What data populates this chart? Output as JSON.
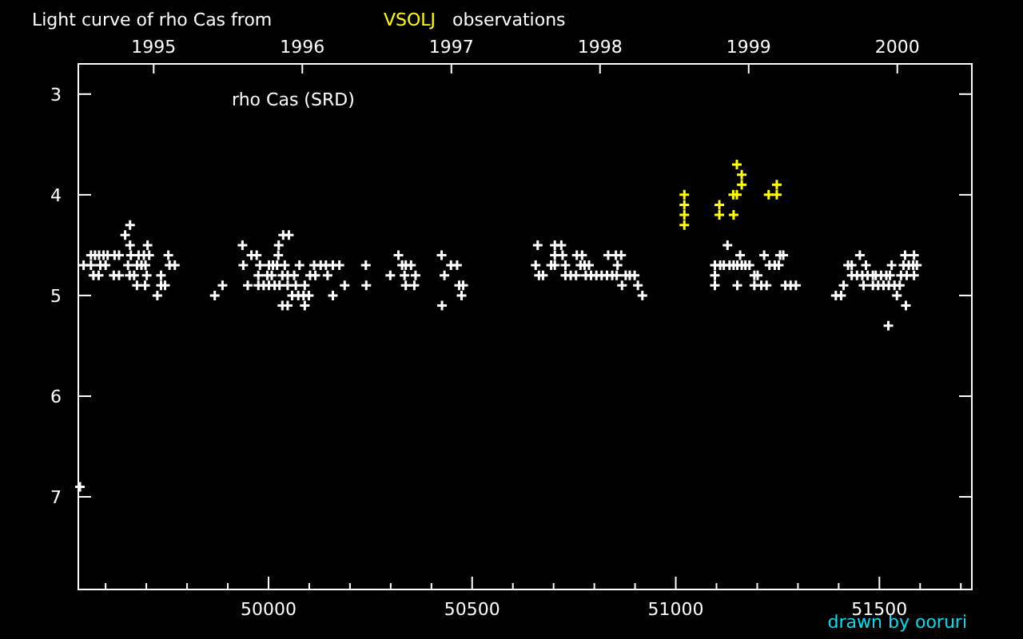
{
  "chart_data": {
    "type": "scatter",
    "title": "Light curve of rho Cas from",
    "annotations": [
      "observations",
      "rho Cas (SRD)",
      "drawn by ooruri"
    ],
    "legend": "top",
    "marker": "cross",
    "xlim": [
      49533,
      51727
    ],
    "ylim": [
      7.92,
      2.7
    ],
    "xticks": [
      {
        "value": 49600,
        "label": null
      },
      {
        "value": 49700,
        "label": null
      },
      {
        "value": 49800,
        "label": null
      },
      {
        "value": 49900,
        "label": null
      },
      50000,
      {
        "value": 50100,
        "label": null
      },
      {
        "value": 50200,
        "label": null
      },
      {
        "value": 50300,
        "label": null
      },
      {
        "value": 50400,
        "label": null
      },
      50500,
      {
        "value": 50600,
        "label": null
      },
      {
        "value": 50700,
        "label": null
      },
      {
        "value": 50800,
        "label": null
      },
      {
        "value": 50900,
        "label": null
      },
      51000,
      {
        "value": 51100,
        "label": null
      },
      {
        "value": 51200,
        "label": null
      },
      {
        "value": 51300,
        "label": null
      },
      {
        "value": 51400,
        "label": null
      },
      51500,
      {
        "value": 51600,
        "label": null
      },
      {
        "value": 51700,
        "label": null
      }
    ],
    "x2lim": [
      "1994-06-30",
      "2000-07-02"
    ],
    "x2ticks": [
      "1995",
      "1996",
      "1997",
      "1998",
      "1999",
      "2000"
    ],
    "yticks": [
      3,
      4,
      5,
      6,
      7
    ],
    "series": [
      {
        "color": "#ffffff",
        "x": [
          49660,
          49648,
          49660,
          49703,
          49564,
          49574,
          49584,
          49595,
          49605,
          49622,
          49633,
          49662,
          49681,
          49694,
          49707,
          49754,
          49546,
          49564,
          49587,
          49600,
          49655,
          49677,
          49688,
          49698,
          49757,
          49770,
          49570,
          49583,
          49620,
          49633,
          49659,
          49670,
          49701,
          49736,
          49677,
          49697,
          49736,
          49746,
          49727,
          49537,
          50036,
          50050,
          49936,
          50025,
          49958,
          49971,
          50024,
          49938,
          49979,
          50001,
          50011,
          50021,
          50040,
          50076,
          50112,
          50128,
          50141,
          50158,
          50174,
          50239,
          49975,
          49997,
          50008,
          50034,
          50047,
          50063,
          50102,
          50115,
          50145,
          49887,
          49949,
          49975,
          49988,
          50001,
          50015,
          50027,
          50047,
          50067,
          50089,
          50187,
          50240,
          49868,
          50058,
          50073,
          50086,
          50099,
          50158,
          50034,
          50047,
          50089,
          50319,
          50425,
          50328,
          50337,
          50350,
          50448,
          50463,
          50299,
          50334,
          50361,
          50432,
          50337,
          50358,
          50468,
          50478,
          50474,
          50426,
          50661,
          50703,
          50719,
          50703,
          50722,
          50757,
          50770,
          50834,
          50853,
          50866,
          50656,
          50694,
          50703,
          50729,
          50766,
          50776,
          50787,
          50857,
          50664,
          50674,
          50729,
          50742,
          50755,
          50779,
          50792,
          50805,
          50818,
          50831,
          50844,
          50855,
          50877,
          50887,
          50899,
          50868,
          50907,
          50918,
          51127,
          51158,
          51217,
          51256,
          51264,
          51096,
          51109,
          51118,
          51132,
          51142,
          51151,
          51162,
          51171,
          51181,
          51230,
          51243,
          51253,
          51096,
          51193,
          51201,
          51096,
          51151,
          51193,
          51210,
          51223,
          51269,
          51282,
          51295,
          51452,
          51563,
          51585,
          51423,
          51432,
          51467,
          51530,
          51559,
          51572,
          51583,
          51592,
          51432,
          51445,
          51458,
          51471,
          51484,
          51491,
          51504,
          51517,
          51526,
          51553,
          51567,
          51585,
          51412,
          51461,
          51484,
          51497,
          51510,
          51523,
          51537,
          51550,
          51393,
          51406,
          51543,
          51565,
          51522
        ],
        "values": [
          4.3,
          4.4,
          4.5,
          4.5,
          4.6,
          4.6,
          4.6,
          4.6,
          4.6,
          4.6,
          4.6,
          4.6,
          4.6,
          4.6,
          4.6,
          4.6,
          4.7,
          4.7,
          4.7,
          4.7,
          4.7,
          4.7,
          4.7,
          4.7,
          4.7,
          4.7,
          4.8,
          4.8,
          4.8,
          4.8,
          4.8,
          4.8,
          4.8,
          4.8,
          4.9,
          4.9,
          4.9,
          4.9,
          5.0,
          6.9,
          4.4,
          4.4,
          4.5,
          4.5,
          4.6,
          4.6,
          4.6,
          4.7,
          4.7,
          4.7,
          4.7,
          4.7,
          4.7,
          4.7,
          4.7,
          4.7,
          4.7,
          4.7,
          4.7,
          4.7,
          4.8,
          4.8,
          4.8,
          4.8,
          4.8,
          4.8,
          4.8,
          4.8,
          4.8,
          4.9,
          4.9,
          4.9,
          4.9,
          4.9,
          4.9,
          4.9,
          4.9,
          4.9,
          4.9,
          4.9,
          4.9,
          5.0,
          5.0,
          5.0,
          5.0,
          5.0,
          5.0,
          5.1,
          5.1,
          5.1,
          4.6,
          4.6,
          4.7,
          4.7,
          4.7,
          4.7,
          4.7,
          4.8,
          4.8,
          4.8,
          4.8,
          4.9,
          4.9,
          4.9,
          4.9,
          5.0,
          5.1,
          4.5,
          4.5,
          4.5,
          4.6,
          4.6,
          4.6,
          4.6,
          4.6,
          4.6,
          4.6,
          4.7,
          4.7,
          4.7,
          4.7,
          4.7,
          4.7,
          4.7,
          4.7,
          4.8,
          4.8,
          4.8,
          4.8,
          4.8,
          4.8,
          4.8,
          4.8,
          4.8,
          4.8,
          4.8,
          4.8,
          4.8,
          4.8,
          4.8,
          4.9,
          4.9,
          5.0,
          4.5,
          4.6,
          4.6,
          4.6,
          4.6,
          4.7,
          4.7,
          4.7,
          4.7,
          4.7,
          4.7,
          4.7,
          4.7,
          4.7,
          4.7,
          4.7,
          4.7,
          4.8,
          4.8,
          4.8,
          4.9,
          4.9,
          4.9,
          4.9,
          4.9,
          4.9,
          4.9,
          4.9,
          4.6,
          4.6,
          4.6,
          4.7,
          4.7,
          4.7,
          4.7,
          4.7,
          4.7,
          4.7,
          4.7,
          4.8,
          4.8,
          4.8,
          4.8,
          4.8,
          4.8,
          4.8,
          4.8,
          4.8,
          4.8,
          4.8,
          4.8,
          4.9,
          4.9,
          4.9,
          4.9,
          4.9,
          4.9,
          4.9,
          4.9,
          5.0,
          5.0,
          5.0,
          5.1,
          5.3
        ]
      },
      {
        "name": "VSOLJ",
        "color": "#ffff00",
        "x": [
          51021,
          51021,
          51021,
          51021,
          51150,
          51162,
          51162,
          51141,
          51150,
          51107,
          51107,
          51142,
          51248,
          51248,
          51228
        ],
        "values": [
          4.0,
          4.1,
          4.2,
          4.3,
          3.7,
          3.8,
          3.9,
          4.0,
          4.0,
          4.1,
          4.2,
          4.2,
          3.9,
          4.0,
          4.0
        ]
      }
    ]
  }
}
